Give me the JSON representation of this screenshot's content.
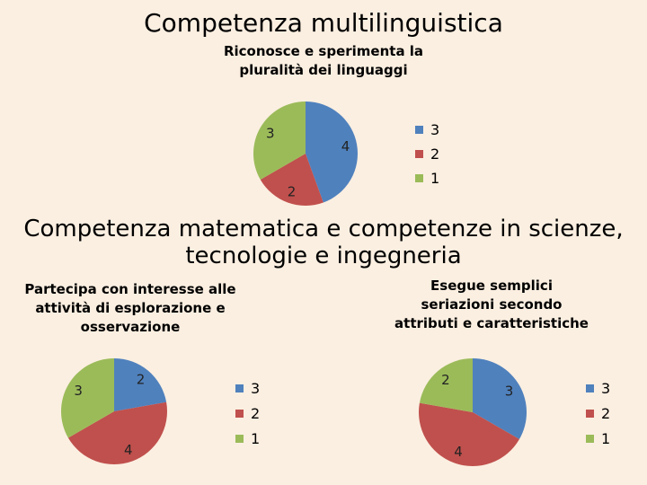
{
  "page": {
    "title": "Competenza multilinguistica",
    "section_title": "Competenza matematica e competenze in scienze, tecnologie e ingegneria"
  },
  "colors": {
    "3": "#4f81bd",
    "2": "#c0504d",
    "1": "#9bbb59"
  },
  "chart_data": [
    {
      "type": "pie",
      "title": "Riconosce e sperimenta la pluralità dei linguaggi",
      "labels": [
        "3",
        "2",
        "1"
      ],
      "values": [
        4,
        2,
        3
      ],
      "colors": [
        "#4f81bd",
        "#c0504d",
        "#9bbb59"
      ],
      "legend": [
        "3",
        "2",
        "1"
      ],
      "legend_position": "right"
    },
    {
      "type": "pie",
      "title": "Partecipa con interesse alle attività di esplorazione e osservazione",
      "labels": [
        "3",
        "2",
        "1"
      ],
      "values": [
        2,
        4,
        3
      ],
      "colors": [
        "#4f81bd",
        "#c0504d",
        "#9bbb59"
      ],
      "legend": [
        "3",
        "2",
        "1"
      ],
      "legend_position": "right"
    },
    {
      "type": "pie",
      "title": "Esegue semplici seriazioni secondo attributi e caratteristiche",
      "labels": [
        "3",
        "2",
        "1"
      ],
      "values": [
        3,
        4,
        2
      ],
      "colors": [
        "#4f81bd",
        "#c0504d",
        "#9bbb59"
      ],
      "legend": [
        "3",
        "2",
        "1"
      ],
      "legend_position": "right"
    }
  ]
}
